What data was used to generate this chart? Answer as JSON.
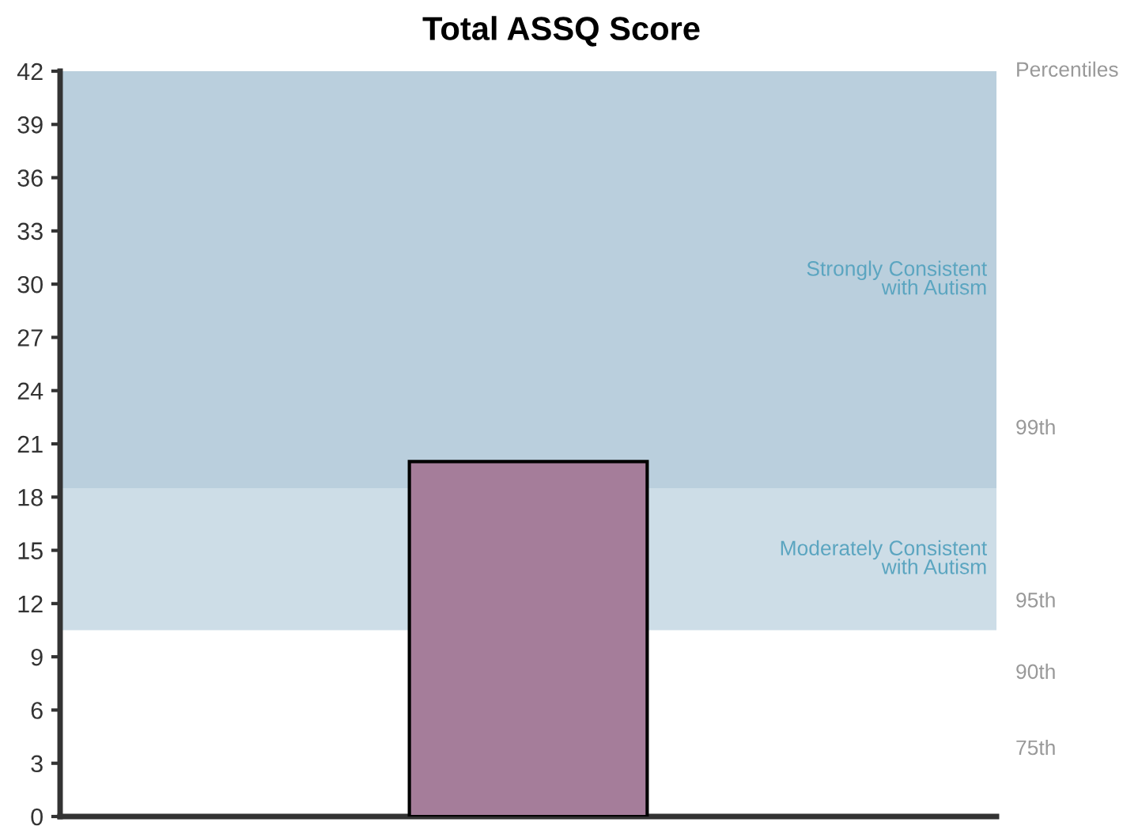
{
  "chart_data": {
    "type": "bar",
    "title": "Total ASSQ Score",
    "categories": [
      null
    ],
    "values": [
      20
    ],
    "color": "#a57d9a",
    "ylim": [
      0,
      42
    ],
    "yticks": [
      0,
      3,
      6,
      9,
      12,
      15,
      18,
      21,
      24,
      27,
      30,
      33,
      36,
      39,
      42
    ],
    "annotations": [
      "Percentiles",
      "99th",
      "95th",
      "90th",
      "75th"
    ],
    "bands": [
      {
        "axis": "y",
        "from": 10.5,
        "to": 18.5,
        "label": "Moderately Consistent\nwith Autism",
        "color": "#cddde7"
      },
      {
        "axis": "y",
        "from": 18.5,
        "to": 42,
        "label": "Strongly Consistent\nwith Autism",
        "color": "#bacfdd"
      }
    ],
    "grid": false,
    "legend": false
  }
}
